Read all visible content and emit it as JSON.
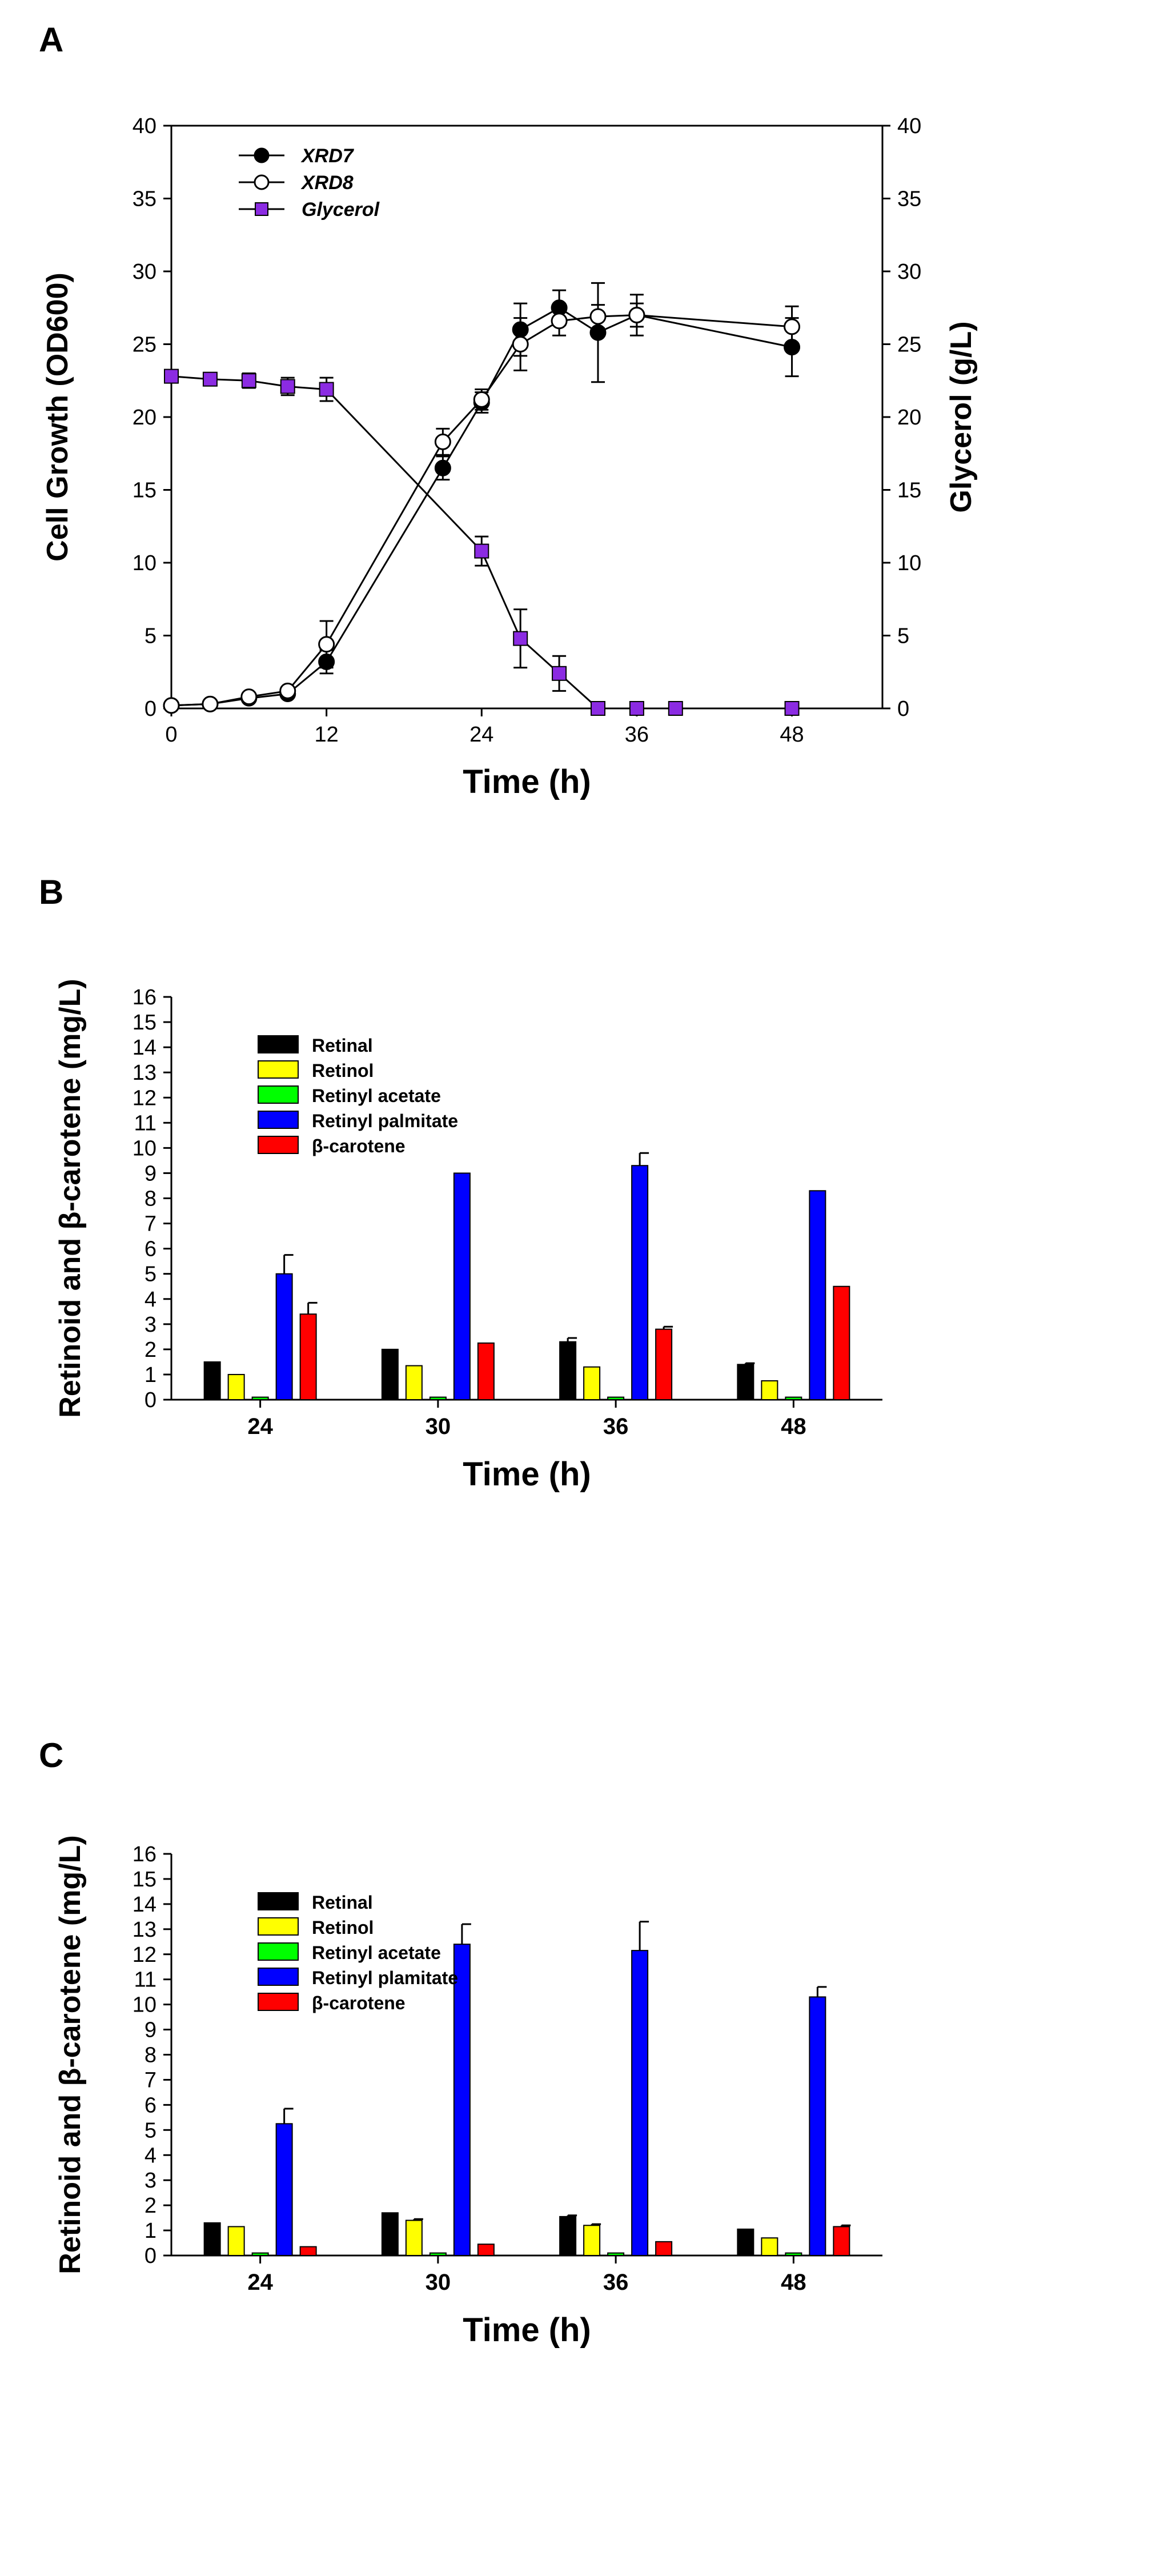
{
  "chart_data": [
    {
      "panel": "A",
      "type": "line",
      "xlabel": "Time (h)",
      "ylabel": "Cell Growth (OD600)",
      "y2label": "Glycerol (g/L)",
      "xlim": [
        0,
        55
      ],
      "ylim": [
        0,
        40
      ],
      "y2lim": [
        0,
        40
      ],
      "xticks": [
        0,
        12,
        24,
        36,
        48
      ],
      "yticks": [
        0,
        5,
        10,
        15,
        20,
        25,
        30,
        35,
        40
      ],
      "legend_position": "top-left",
      "series": [
        {
          "name": "XRD7",
          "axis": "left",
          "marker": "filled-circle",
          "color": "#000000",
          "x": [
            0,
            3,
            6,
            9,
            12,
            21,
            24,
            27,
            30,
            33,
            36,
            48
          ],
          "y": [
            0.2,
            0.3,
            0.7,
            1.0,
            3.2,
            16.5,
            21.0,
            26.0,
            27.5,
            25.8,
            27.0,
            24.8
          ],
          "err": [
            0.1,
            0.1,
            0.1,
            0.2,
            0.8,
            0.8,
            0.7,
            1.8,
            1.2,
            3.4,
            1.4,
            2.0
          ]
        },
        {
          "name": "XRD8",
          "axis": "left",
          "marker": "open-circle",
          "color": "#000000",
          "x": [
            0,
            3,
            6,
            9,
            12,
            21,
            24,
            27,
            30,
            33,
            36,
            48
          ],
          "y": [
            0.2,
            0.3,
            0.8,
            1.2,
            4.4,
            18.3,
            21.2,
            25.0,
            26.6,
            26.9,
            27.0,
            26.2
          ],
          "err": [
            0.1,
            0.1,
            0.2,
            0.2,
            1.6,
            0.9,
            0.7,
            1.8,
            1.0,
            0.8,
            0.8,
            1.4
          ]
        },
        {
          "name": "Glycerol",
          "axis": "right",
          "marker": "square",
          "color": "#8b2be2",
          "x": [
            0,
            3,
            6,
            9,
            12,
            24,
            27,
            30,
            33,
            36,
            39,
            48
          ],
          "y": [
            22.8,
            22.6,
            22.5,
            22.1,
            21.9,
            10.8,
            4.8,
            2.4,
            0,
            0,
            0,
            0
          ],
          "err": [
            0.3,
            0.3,
            0.5,
            0.6,
            0.8,
            1.0,
            2.0,
            1.2,
            0,
            0,
            0,
            0
          ]
        }
      ]
    },
    {
      "panel": "B",
      "type": "bar",
      "xlabel": "Time (h)",
      "ylabel": "Retinoid and β-carotene (mg/L)",
      "ylim": [
        0,
        16
      ],
      "yticks": [
        0,
        1,
        2,
        3,
        4,
        5,
        6,
        7,
        8,
        9,
        10,
        11,
        12,
        13,
        14,
        15,
        16
      ],
      "categories": [
        "24",
        "30",
        "36",
        "48"
      ],
      "legend_position": "top-left",
      "series": [
        {
          "name": "Retinal",
          "color": "#000000",
          "values": [
            1.5,
            2.0,
            2.3,
            1.4
          ],
          "err": [
            0,
            0,
            0.15,
            0.05
          ]
        },
        {
          "name": "Retinol",
          "color": "#ffff00",
          "values": [
            1.0,
            1.35,
            1.3,
            0.75
          ],
          "err": [
            0,
            0,
            0,
            0
          ]
        },
        {
          "name": "Retinyl acetate",
          "color": "#00ff00",
          "values": [
            0.1,
            0.1,
            0.1,
            0.1
          ],
          "err": [
            0,
            0,
            0,
            0
          ]
        },
        {
          "name": "Retinyl palmitate",
          "color": "#0000ff",
          "values": [
            5.0,
            9.0,
            9.3,
            8.3
          ],
          "err": [
            0.75,
            0,
            0.5,
            0
          ]
        },
        {
          "name": "β-carotene",
          "color": "#ff0000",
          "values": [
            3.4,
            2.25,
            2.8,
            4.5
          ],
          "err": [
            0.45,
            0,
            0.1,
            0
          ]
        }
      ]
    },
    {
      "panel": "C",
      "type": "bar",
      "xlabel": "Time (h)",
      "ylabel": "Retinoid and β-carotene (mg/L)",
      "ylim": [
        0,
        16
      ],
      "yticks": [
        0,
        1,
        2,
        3,
        4,
        5,
        6,
        7,
        8,
        9,
        10,
        11,
        12,
        13,
        14,
        15,
        16
      ],
      "categories": [
        "24",
        "30",
        "36",
        "48"
      ],
      "legend_position": "top-left",
      "series": [
        {
          "name": "Retinal",
          "color": "#000000",
          "values": [
            1.3,
            1.7,
            1.55,
            1.05
          ],
          "err": [
            0,
            0,
            0.05,
            0
          ]
        },
        {
          "name": "Retinol",
          "color": "#ffff00",
          "values": [
            1.15,
            1.4,
            1.2,
            0.7
          ],
          "err": [
            0,
            0.05,
            0.05,
            0
          ]
        },
        {
          "name": "Retinyl acetate",
          "color": "#00ff00",
          "values": [
            0.1,
            0.1,
            0.1,
            0.1
          ],
          "err": [
            0,
            0,
            0,
            0
          ]
        },
        {
          "name": "Retinyl plamitate",
          "color": "#0000ff",
          "values": [
            5.25,
            12.4,
            12.15,
            10.3
          ],
          "err": [
            0.6,
            0.8,
            1.15,
            0.4
          ]
        },
        {
          "name": "β-carotene",
          "color": "#ff0000",
          "values": [
            0.35,
            0.45,
            0.55,
            1.15
          ],
          "err": [
            0,
            0,
            0,
            0.05
          ]
        }
      ]
    }
  ]
}
